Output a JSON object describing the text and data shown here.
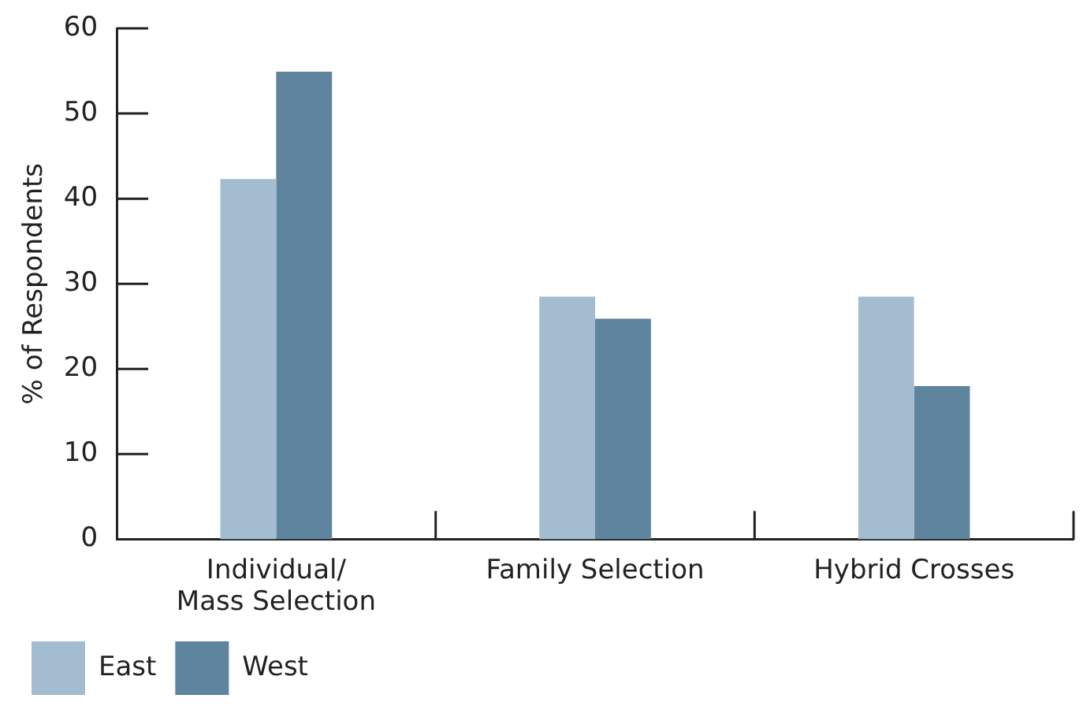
{
  "chart_data": {
    "type": "bar",
    "ylabel": "% of Respondents",
    "categories": [
      "Individual/\nMass Selection",
      "Family Selection",
      "Hybrid Crosses"
    ],
    "series": [
      {
        "name": "East",
        "color": "#a3bcd0",
        "values": [
          42.3,
          28.5,
          28.5
        ]
      },
      {
        "name": "West",
        "color": "#5e849e",
        "values": [
          54.9,
          25.9,
          18.0
        ]
      }
    ],
    "ylim": [
      0,
      60
    ],
    "yticks": [
      0,
      10,
      20,
      30,
      40,
      50,
      60
    ],
    "legend": "bottom left"
  }
}
